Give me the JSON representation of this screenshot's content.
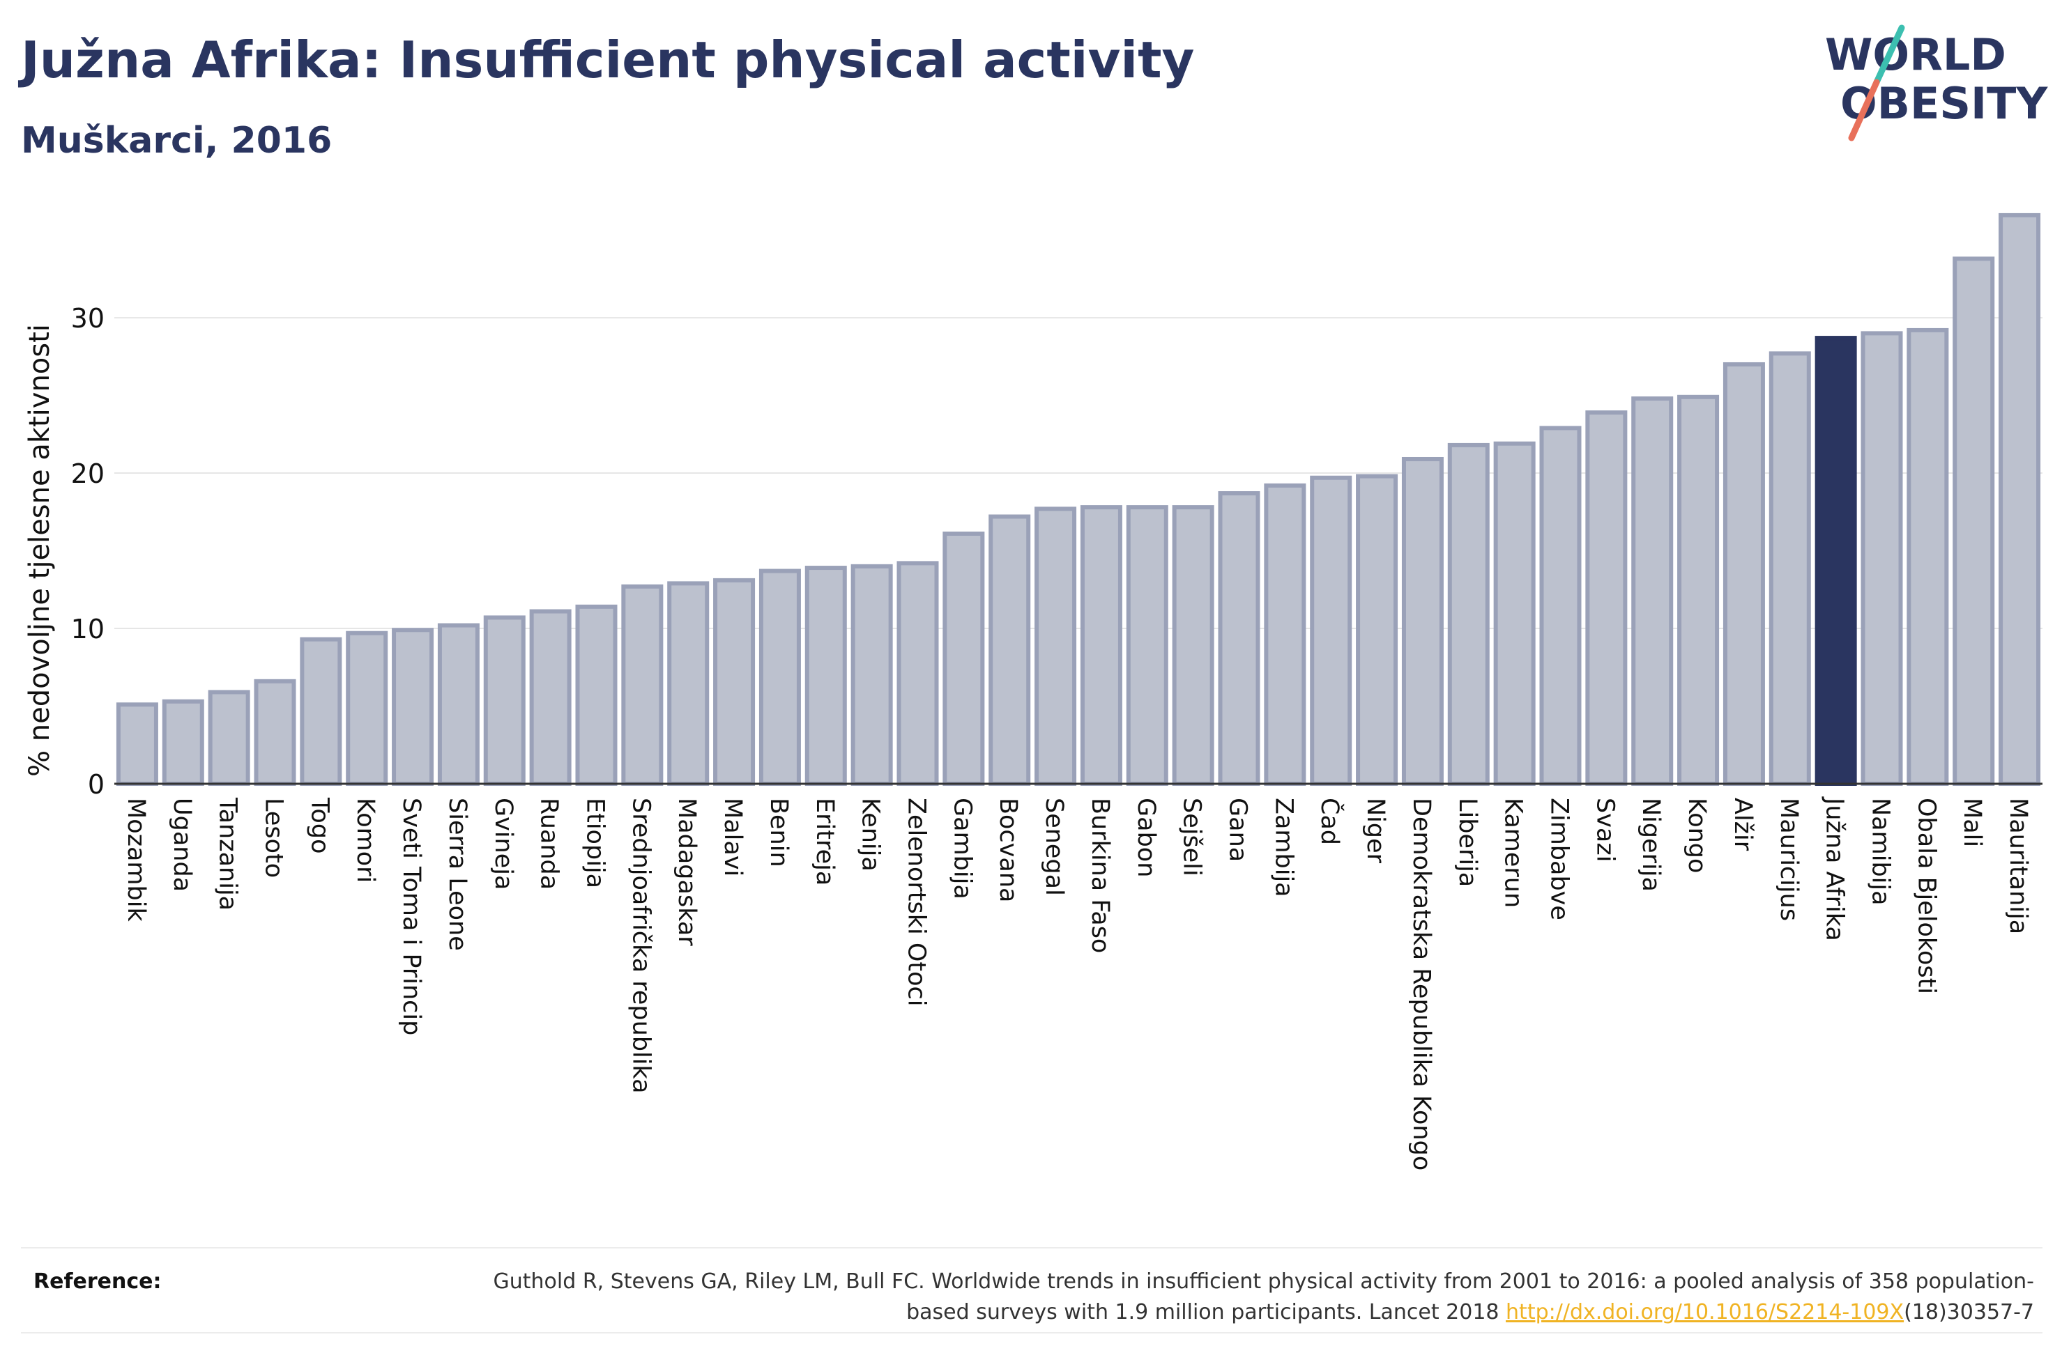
{
  "header": {
    "title": "Južna Afrika: Insufficient physical activity",
    "subtitle": "Muškarci, 2016"
  },
  "logo": {
    "line1": "WORLD",
    "line2": "OBESITY",
    "colors": {
      "text": "#2a3560",
      "slash_top": "#3cbfb0",
      "slash_bottom": "#e8705a"
    }
  },
  "reference": {
    "label": "Reference:",
    "text_before": "Guthold R, Stevens GA, Riley LM, Bull FC. Worldwide trends in insufficient physical activity from 2001 to 2016: a pooled analysis of 358 population-based surveys with 1.9 million participants. Lancet 2018 ",
    "link_text": "http://dx.doi.org/10.1016/S2214-109X",
    "text_after": "(18)30357-7"
  },
  "colors": {
    "bar": "#bcc1ce",
    "bar_border": "#9aa1b8",
    "highlight": "#2a3560",
    "grid": "#e6e6e6",
    "axis": "#333333"
  },
  "chart_data": {
    "type": "bar",
    "ylabel": "% nedovoljne tjelesne aktivnosti",
    "xlabel": "",
    "ylim": [
      0,
      37
    ],
    "yticks": [
      0,
      10,
      20,
      30
    ],
    "grid": true,
    "highlight_category": "Južna Afrika",
    "categories": [
      "Mozambik",
      "Uganda",
      "Tanzanija",
      "Lesoto",
      "Togo",
      "Komori",
      "Sveti Toma i Princip",
      "Sierra Leone",
      "Gvineja",
      "Ruanda",
      "Etiopija",
      "Srednjoafrička republika",
      "Madagaskar",
      "Malavi",
      "Benin",
      "Eritreja",
      "Kenija",
      "Zelenortski Otoci",
      "Gambija",
      "Bocvana",
      "Senegal",
      "Burkina Faso",
      "Gabon",
      "Sejšeli",
      "Gana",
      "Zambija",
      "Čad",
      "Niger",
      "Demokratska Republika Kongo",
      "Liberija",
      "Kamerun",
      "Zimbabve",
      "Svazi",
      "Nigerija",
      "Kongo",
      "Alžir",
      "Mauricijus",
      "Južna Afrika",
      "Namibija",
      "Obala Bjelokosti",
      "Mali",
      "Mauritanija"
    ],
    "values": [
      5.1,
      5.3,
      5.9,
      6.6,
      9.3,
      9.7,
      9.9,
      10.2,
      10.7,
      11.1,
      11.4,
      12.7,
      12.9,
      13.1,
      13.7,
      13.9,
      14.0,
      14.2,
      16.1,
      17.2,
      17.7,
      17.8,
      17.8,
      17.8,
      18.7,
      19.2,
      19.7,
      19.8,
      20.9,
      21.8,
      21.9,
      22.9,
      23.9,
      24.8,
      24.9,
      27.0,
      27.7,
      28.7,
      29.0,
      29.2,
      33.8,
      36.6
    ]
  }
}
